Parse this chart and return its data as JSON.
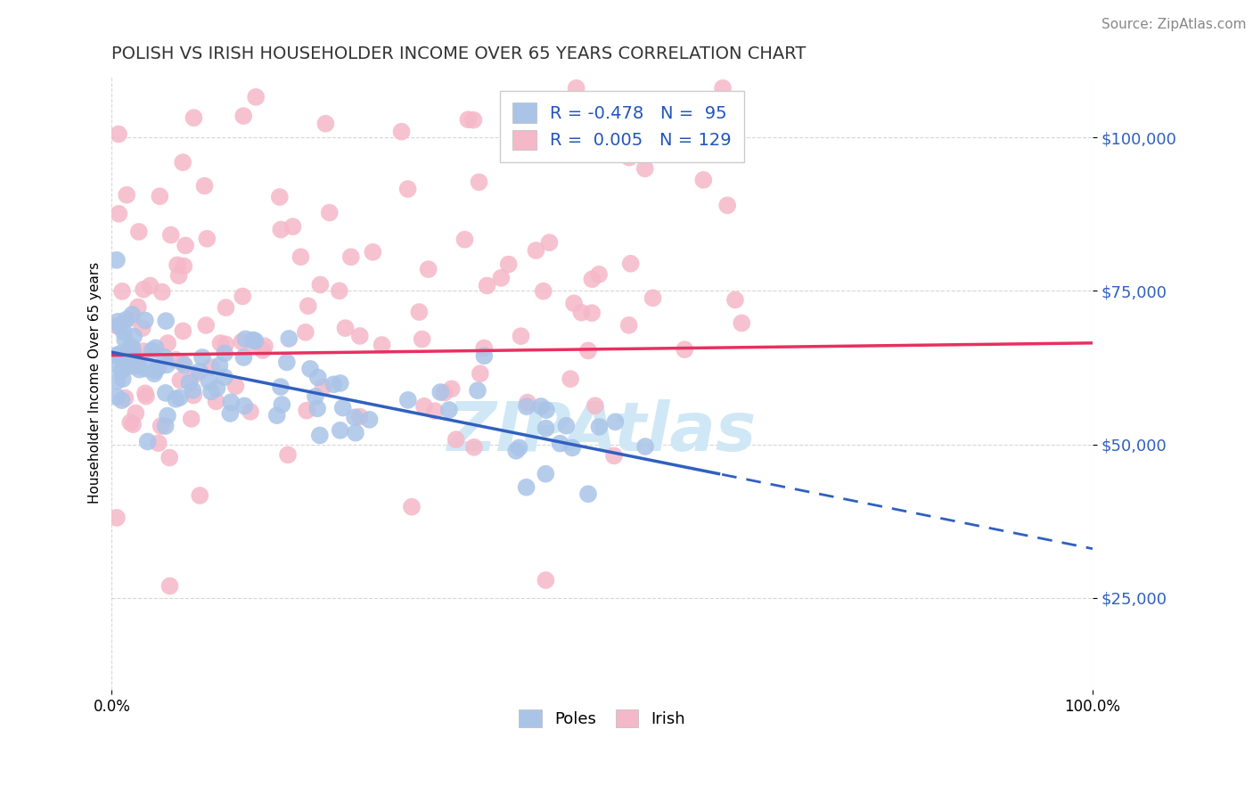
{
  "title": "POLISH VS IRISH HOUSEHOLDER INCOME OVER 65 YEARS CORRELATION CHART",
  "source": "Source: ZipAtlas.com",
  "ylabel": "Householder Income Over 65 years",
  "ytick_labels": [
    "$25,000",
    "$50,000",
    "$75,000",
    "$100,000"
  ],
  "ytick_values": [
    25000,
    50000,
    75000,
    100000
  ],
  "ylim": [
    10000,
    110000
  ],
  "xlim": [
    0.0,
    1.0
  ],
  "poles_color": "#aac4e8",
  "irish_color": "#f5b8c8",
  "trend_poles_color": "#3060c0",
  "trend_irish_color": "#e83060",
  "watermark_color": "#d0e8f5",
  "legend_r1": "R = -0.478",
  "legend_n1": "N =  95",
  "legend_r2": "R =  0.005",
  "legend_n2": "N = 129",
  "bottom_labels": [
    "Poles",
    "Irish"
  ]
}
